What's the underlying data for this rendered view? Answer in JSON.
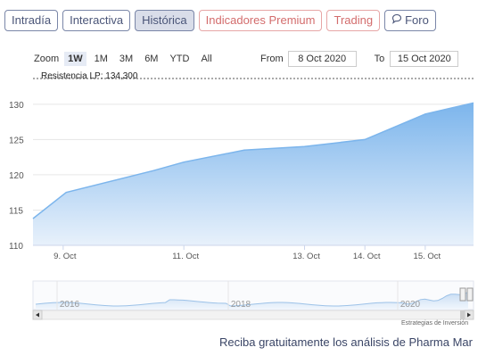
{
  "tabs": [
    {
      "label": "Intradía",
      "style": "normal"
    },
    {
      "label": "Interactiva",
      "style": "normal"
    },
    {
      "label": "Histórica",
      "style": "active"
    },
    {
      "label": "Indicadores Premium",
      "style": "premium"
    },
    {
      "label": "Trading",
      "style": "premium"
    },
    {
      "label": "Foro",
      "style": "normal",
      "icon": "chat-icon"
    }
  ],
  "range": {
    "zoom_label": "Zoom",
    "buttons": [
      {
        "label": "1W",
        "active": true
      },
      {
        "label": "1M",
        "active": false
      },
      {
        "label": "3M",
        "active": false
      },
      {
        "label": "6M",
        "active": false
      },
      {
        "label": "YTD",
        "active": false
      },
      {
        "label": "All",
        "active": false
      }
    ],
    "from_label": "From",
    "from_value": "8 Oct 2020",
    "to_label": "To",
    "to_value": "15 Oct 2020"
  },
  "resistance_label": "Resistencia LP: 134,300",
  "navigator": {
    "year_labels": [
      "2016",
      "2018",
      "2020"
    ],
    "credit": "Estrategias de Inversión"
  },
  "promo_text": "Reciba gratuitamente los análisis de Pharma Mar",
  "colors": {
    "area_top": "#7cb5ec",
    "area_bottom": "#e8f1fb",
    "line": "#7cb5ec",
    "grid": "#e6e6e6"
  },
  "chart_data": {
    "type": "area",
    "x": [
      "8 Oct",
      "9 Oct",
      "10 Oct",
      "11 Oct",
      "12 Oct",
      "13 Oct",
      "14 Oct",
      "15 Oct",
      "16 Oct"
    ],
    "x_numeric": [
      8.5,
      9.05,
      10.5,
      11,
      12,
      13,
      14,
      15,
      15.8
    ],
    "values": [
      113.8,
      117.5,
      120.6,
      121.8,
      123.5,
      124.0,
      125.0,
      128.6,
      130.2
    ],
    "xticks": [
      "9. Oct",
      "11. Oct",
      "13. Oct",
      "14. Oct",
      "15. Oct"
    ],
    "xtick_values": [
      9,
      11,
      13,
      14,
      15
    ],
    "yticks": [
      110,
      115,
      120,
      125,
      130
    ],
    "ylim": [
      110,
      131.5
    ],
    "grid": true,
    "legend": "none"
  }
}
